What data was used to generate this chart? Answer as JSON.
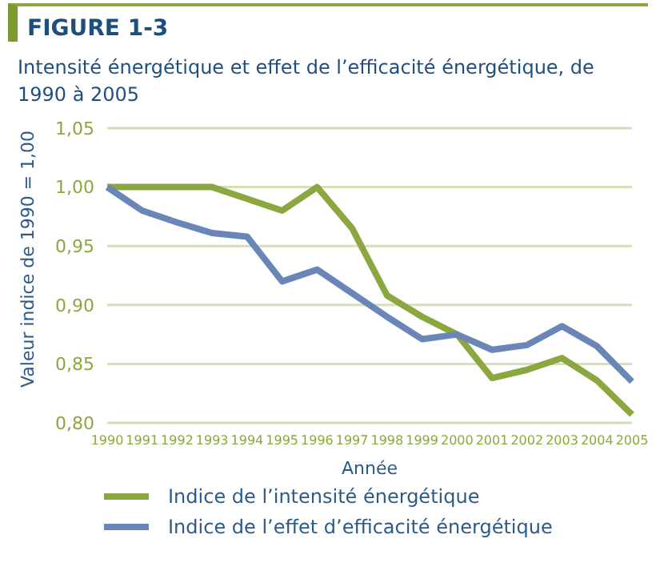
{
  "chart_data": {
    "type": "line",
    "title": "FIGURE 1-3",
    "subtitle": "Intensité énergétique et effet de l’efficacité énergétique, de 1990 à 2005",
    "xlabel": "Année",
    "ylabel": "Valeur indice de 1990 = 1,00",
    "categories": [
      "1990",
      "1991",
      "1992",
      "1993",
      "1994",
      "1995",
      "1996",
      "1997",
      "1998",
      "1999",
      "2000",
      "2001",
      "2002",
      "2003",
      "2004",
      "2005"
    ],
    "series": [
      {
        "name": "Indice de l’intensité énergétique",
        "color": "#8aa83f",
        "values": [
          1.0,
          1.0,
          1.0,
          1.0,
          0.99,
          0.98,
          1.0,
          0.965,
          0.908,
          0.89,
          0.875,
          0.838,
          0.845,
          0.855,
          0.836,
          0.807
        ]
      },
      {
        "name": "Indice de l’effet d’efficacité énergétique",
        "color": "#6a86b8",
        "values": [
          1.0,
          0.98,
          0.97,
          0.961,
          0.958,
          0.92,
          0.93,
          0.91,
          0.89,
          0.871,
          0.875,
          0.862,
          0.866,
          0.882,
          0.865,
          0.835
        ]
      }
    ],
    "ylim": [
      0.8,
      1.05
    ],
    "yticks": [
      {
        "value": 0.8,
        "label": "0,80"
      },
      {
        "value": 0.85,
        "label": "0,85"
      },
      {
        "value": 0.9,
        "label": "0,90"
      },
      {
        "value": 0.95,
        "label": "0,95"
      },
      {
        "value": 1.0,
        "label": "1,00"
      },
      {
        "value": 1.05,
        "label": "1,05"
      }
    ],
    "grid": "y",
    "legend": "bottom",
    "marker": "none",
    "line_style": "solid"
  }
}
